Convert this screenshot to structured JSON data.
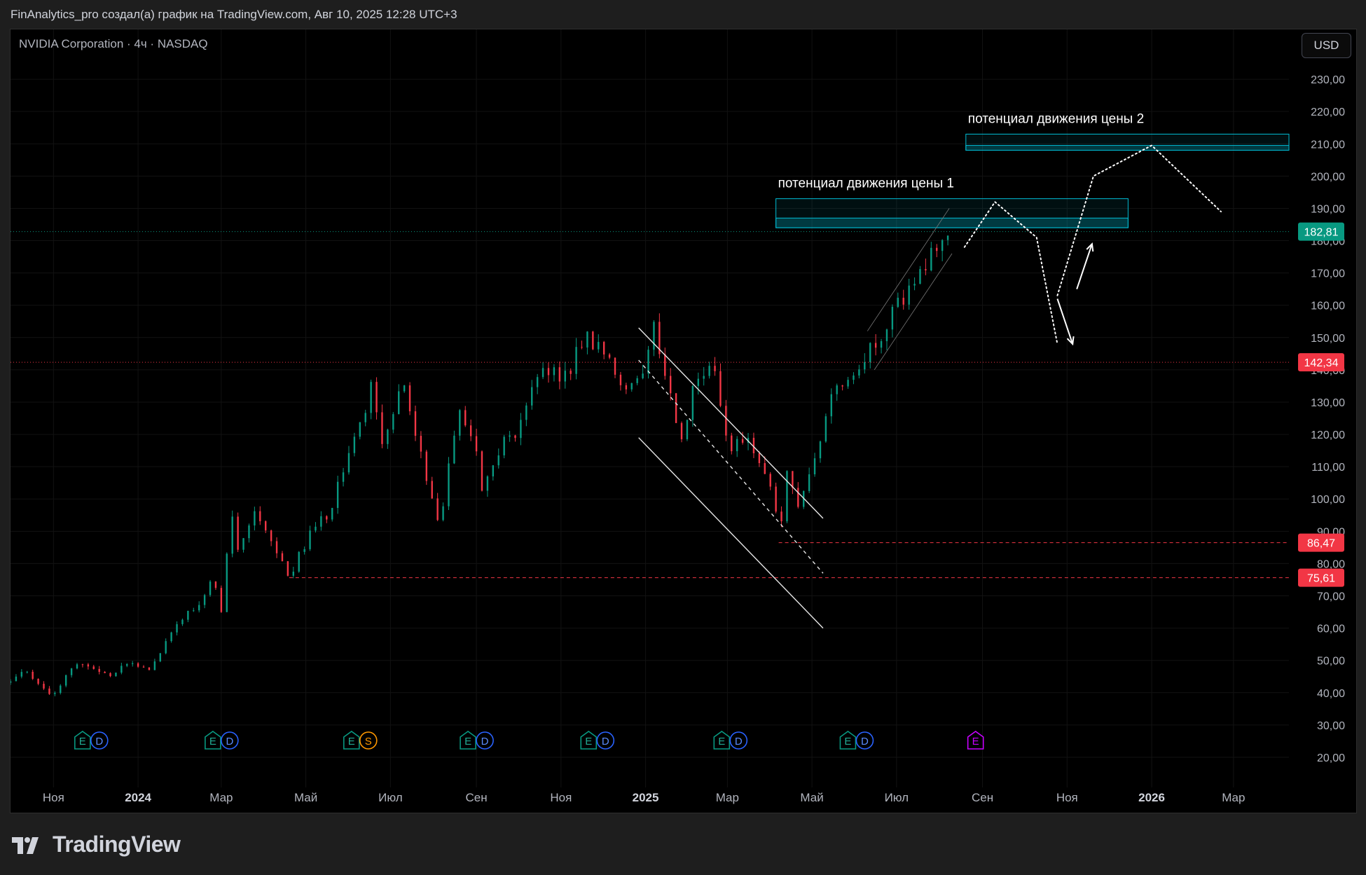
{
  "header": {
    "attribution": "FinAnalytics_pro создал(а) график на TradingView.com, Авг 10, 2025 12:28 UTC+3"
  },
  "symbol": {
    "label": "NVIDIA Corporation · 4ч · NASDAQ"
  },
  "currency": "USD",
  "footer": {
    "brand": "TradingView"
  },
  "colors": {
    "up": "#089981",
    "down": "#f23645",
    "zone": "#00bcd4",
    "price_badge": "#089981",
    "level_badge": "#f23645"
  },
  "chart_data": {
    "type": "candlestick",
    "y_axis": {
      "min": 15,
      "max": 240,
      "ticks": [
        "20,00",
        "30,00",
        "40,00",
        "50,00",
        "60,00",
        "70,00",
        "80,00",
        "90,00",
        "100,00",
        "110,00",
        "120,00",
        "130,00",
        "140,00",
        "150,00",
        "160,00",
        "170,00",
        "180,00",
        "190,00",
        "200,00",
        "210,00",
        "220,00",
        "230,00"
      ],
      "tick_values": [
        20,
        30,
        40,
        50,
        60,
        70,
        80,
        90,
        100,
        110,
        120,
        130,
        140,
        150,
        160,
        170,
        180,
        190,
        200,
        210,
        220,
        230
      ]
    },
    "x_axis": {
      "start": "2023-10-01",
      "end": "2026-04-10",
      "labels": [
        {
          "text": "Ноя",
          "date": "2023-11-01",
          "bold": false
        },
        {
          "text": "2024",
          "date": "2024-01-01",
          "bold": true
        },
        {
          "text": "Мар",
          "date": "2024-03-01",
          "bold": false
        },
        {
          "text": "Май",
          "date": "2024-05-01",
          "bold": false
        },
        {
          "text": "Июл",
          "date": "2024-07-01",
          "bold": false
        },
        {
          "text": "Сен",
          "date": "2024-09-01",
          "bold": false
        },
        {
          "text": "Ноя",
          "date": "2024-11-01",
          "bold": false
        },
        {
          "text": "2025",
          "date": "2025-01-01",
          "bold": true
        },
        {
          "text": "Мар",
          "date": "2025-03-01",
          "bold": false
        },
        {
          "text": "Май",
          "date": "2025-05-01",
          "bold": false
        },
        {
          "text": "Июл",
          "date": "2025-07-01",
          "bold": false
        },
        {
          "text": "Сен",
          "date": "2025-09-01",
          "bold": false
        },
        {
          "text": "Ноя",
          "date": "2025-11-01",
          "bold": false
        },
        {
          "text": "2026",
          "date": "2026-01-01",
          "bold": true
        },
        {
          "text": "Мар",
          "date": "2026-03-01",
          "bold": false
        }
      ]
    },
    "price_path": [
      [
        "2023-10-01",
        43
      ],
      [
        "2023-10-12",
        47
      ],
      [
        "2023-10-31",
        39.5
      ],
      [
        "2023-11-20",
        50
      ],
      [
        "2023-12-10",
        45
      ],
      [
        "2023-12-28",
        49.5
      ],
      [
        "2024-01-08",
        47
      ],
      [
        "2024-01-31",
        62
      ],
      [
        "2024-02-20",
        70
      ],
      [
        "2024-02-23",
        76
      ],
      [
        "2024-03-01",
        66
      ],
      [
        "2024-03-08",
        97
      ],
      [
        "2024-03-13",
        85
      ],
      [
        "2024-03-25",
        96
      ],
      [
        "2024-04-19",
        76
      ],
      [
        "2024-05-08",
        93
      ],
      [
        "2024-05-22",
        96
      ],
      [
        "2024-05-24",
        104
      ],
      [
        "2024-06-12",
        126
      ],
      [
        "2024-06-18",
        140
      ],
      [
        "2024-06-24",
        118
      ],
      [
        "2024-07-10",
        135
      ],
      [
        "2024-07-23",
        113
      ],
      [
        "2024-08-05",
        91
      ],
      [
        "2024-08-19",
        128
      ],
      [
        "2024-08-29",
        120
      ],
      [
        "2024-09-06",
        102
      ],
      [
        "2024-09-20",
        118
      ],
      [
        "2024-10-01",
        120
      ],
      [
        "2024-10-14",
        138
      ],
      [
        "2024-10-23",
        140
      ],
      [
        "2024-11-05",
        138
      ],
      [
        "2024-11-15",
        148
      ],
      [
        "2024-11-21",
        150
      ],
      [
        "2024-12-05",
        145
      ],
      [
        "2024-12-19",
        131
      ],
      [
        "2025-01-03",
        144
      ],
      [
        "2025-01-07",
        153
      ],
      [
        "2025-01-27",
        118
      ],
      [
        "2025-02-06",
        138
      ],
      [
        "2025-02-20",
        140
      ],
      [
        "2025-03-03",
        114
      ],
      [
        "2025-03-12",
        119
      ],
      [
        "2025-03-20",
        116
      ],
      [
        "2025-04-03",
        102
      ],
      [
        "2025-04-07",
        87
      ],
      [
        "2025-04-14",
        111
      ],
      [
        "2025-04-21",
        97
      ],
      [
        "2025-05-05",
        114
      ],
      [
        "2025-05-14",
        133
      ],
      [
        "2025-05-28",
        135
      ],
      [
        "2025-06-05",
        141
      ],
      [
        "2025-06-25",
        155
      ],
      [
        "2025-07-10",
        165
      ],
      [
        "2025-07-25",
        175
      ],
      [
        "2025-08-08",
        182.81
      ]
    ],
    "last_price": {
      "label": "182,81",
      "value": 182.81
    },
    "horizontal_levels": [
      {
        "label": "142,34",
        "value": 142.34,
        "style": "dotted",
        "from": "2023-10-01"
      },
      {
        "label": "86,47",
        "value": 86.47,
        "style": "dashed",
        "from": "2025-04-07"
      },
      {
        "label": "75,61",
        "value": 75.61,
        "style": "dashed",
        "from": "2024-04-19"
      }
    ],
    "zones": [
      {
        "label": "потенциал движения цены 1",
        "from": "2025-04-05",
        "to": "2025-12-15",
        "top": 193,
        "bottom": 184,
        "inner": 187
      },
      {
        "label": "потенциал движения цены 2",
        "from": "2025-08-20",
        "to": "2026-04-10",
        "top": 213,
        "bottom": 208,
        "inner": 209.5
      }
    ],
    "channel_lines": [
      {
        "from": [
          "2024-12-27",
          153
        ],
        "to": [
          "2025-05-09",
          94
        ],
        "style": "solid"
      },
      {
        "from": [
          "2024-12-27",
          119
        ],
        "to": [
          "2025-05-09",
          60
        ],
        "style": "solid"
      },
      {
        "from": [
          "2024-12-27",
          143
        ],
        "to": [
          "2025-05-09",
          77
        ],
        "style": "dashed"
      }
    ],
    "forecast_paths": [
      {
        "points": [
          [
            "2025-08-19",
            178
          ],
          [
            "2025-09-10",
            192
          ],
          [
            "2025-10-10",
            181
          ],
          [
            "2025-10-25",
            148
          ]
        ],
        "style": "dotted"
      },
      {
        "points": [
          [
            "2025-10-25",
            163
          ],
          [
            "2025-11-20",
            200
          ],
          [
            "2026-01-01",
            209.5
          ],
          [
            "2026-02-20",
            189
          ]
        ],
        "style": "dotted"
      }
    ],
    "arrows": [
      {
        "from": [
          "2025-10-25",
          162
        ],
        "to": [
          "2025-11-05",
          148
        ]
      },
      {
        "from": [
          "2025-11-08",
          165
        ],
        "to": [
          "2025-11-19",
          179
        ]
      }
    ],
    "events": [
      {
        "date": "2023-11-28",
        "marks": [
          "E",
          "D"
        ]
      },
      {
        "date": "2024-03-01",
        "marks": [
          "E",
          "D"
        ]
      },
      {
        "date": "2024-06-09",
        "marks": [
          "E",
          "S"
        ]
      },
      {
        "date": "2024-09-01",
        "marks": [
          "E",
          "D"
        ]
      },
      {
        "date": "2024-11-27",
        "marks": [
          "E",
          "D"
        ]
      },
      {
        "date": "2025-03-03",
        "marks": [
          "E",
          "D"
        ]
      },
      {
        "date": "2025-06-02",
        "marks": [
          "E",
          "D"
        ]
      },
      {
        "date": "2025-08-27",
        "marks": [
          "E"
        ],
        "future": true
      }
    ]
  }
}
